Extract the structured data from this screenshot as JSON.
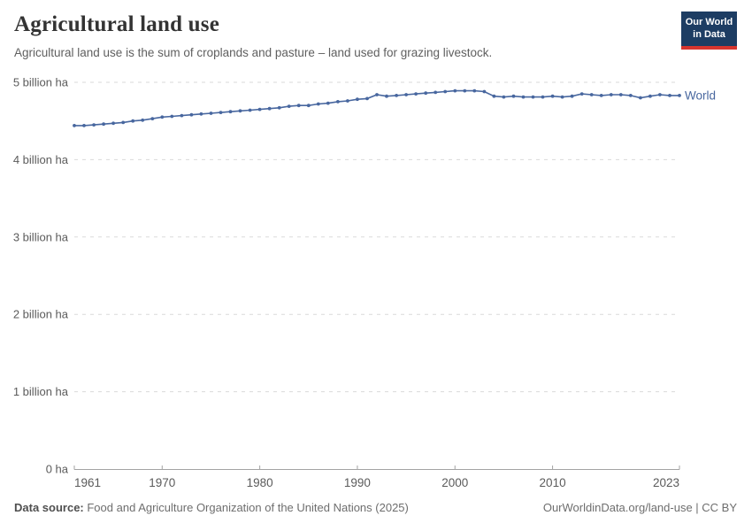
{
  "header": {
    "title": "Agricultural land use",
    "subtitle": "Agricultural land use is the sum of croplands and pasture – land used for grazing livestock.",
    "logo": {
      "line1": "Our World",
      "line2": "in Data"
    }
  },
  "footer": {
    "datasource_label": "Data source:",
    "datasource_text": " Food and Agriculture Organization of the United Nations (2025)",
    "rights": "OurWorldinData.org/land-use | CC BY"
  },
  "colors": {
    "series_blue": "#48679f",
    "grid": "#dadada",
    "axis": "#a3a3a3",
    "tick_text": "#5b5b5b",
    "logo_bg": "#1d3d63",
    "logo_red": "#d7352e"
  },
  "chart_data": {
    "type": "line",
    "title": "Agricultural land use",
    "xlabel": "",
    "ylabel": "",
    "unit": "billion ha",
    "xlim": [
      1961,
      2023
    ],
    "ylim": [
      0,
      5
    ],
    "grid": "horizontal-dashed",
    "legend_position": "end-of-line",
    "x_ticks": [
      1961,
      1970,
      1980,
      1990,
      2000,
      2010,
      2023
    ],
    "y_ticks": [
      {
        "value": 0,
        "label": "0 ha"
      },
      {
        "value": 1,
        "label": "1 billion ha"
      },
      {
        "value": 2,
        "label": "2 billion ha"
      },
      {
        "value": 3,
        "label": "3 billion ha"
      },
      {
        "value": 4,
        "label": "4 billion ha"
      },
      {
        "value": 5,
        "label": "5 billion ha"
      }
    ],
    "series": [
      {
        "name": "World",
        "color": "#48679f",
        "x": [
          1961,
          1962,
          1963,
          1964,
          1965,
          1966,
          1967,
          1968,
          1969,
          1970,
          1971,
          1972,
          1973,
          1974,
          1975,
          1976,
          1977,
          1978,
          1979,
          1980,
          1981,
          1982,
          1983,
          1984,
          1985,
          1986,
          1987,
          1988,
          1989,
          1990,
          1991,
          1992,
          1993,
          1994,
          1995,
          1996,
          1997,
          1998,
          1999,
          2000,
          2001,
          2002,
          2003,
          2004,
          2005,
          2006,
          2007,
          2008,
          2009,
          2010,
          2011,
          2012,
          2013,
          2014,
          2015,
          2016,
          2017,
          2018,
          2019,
          2020,
          2021,
          2022,
          2023
        ],
        "values": [
          4.44,
          4.44,
          4.45,
          4.46,
          4.47,
          4.48,
          4.5,
          4.51,
          4.53,
          4.55,
          4.56,
          4.57,
          4.58,
          4.59,
          4.6,
          4.61,
          4.62,
          4.63,
          4.64,
          4.65,
          4.66,
          4.67,
          4.69,
          4.7,
          4.7,
          4.72,
          4.73,
          4.75,
          4.76,
          4.78,
          4.79,
          4.84,
          4.82,
          4.83,
          4.84,
          4.85,
          4.86,
          4.87,
          4.88,
          4.89,
          4.89,
          4.89,
          4.88,
          4.82,
          4.81,
          4.82,
          4.81,
          4.81,
          4.81,
          4.82,
          4.81,
          4.82,
          4.85,
          4.84,
          4.83,
          4.84,
          4.84,
          4.83,
          4.8,
          4.82,
          4.84,
          4.83,
          4.83
        ]
      }
    ]
  }
}
